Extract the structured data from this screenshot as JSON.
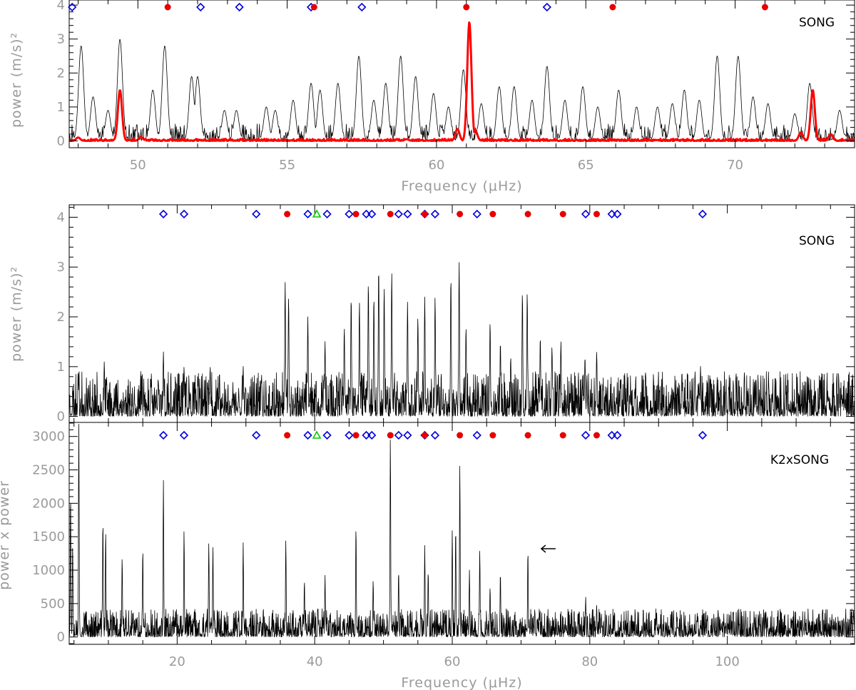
{
  "figure": {
    "colors": {
      "l0_marker": "#e60000",
      "l1_marker": "#0000dd",
      "l2_marker": "#00cc00",
      "raw_spectrum": "#000000",
      "smoothed_spectrum": "#ff0000"
    }
  },
  "chart_data": [
    {
      "type": "line",
      "panel_label": "SONG",
      "xlabel": "Frequency (μHz)",
      "ylabel": "power (m/s)²",
      "xlim": [
        47.7,
        74.0
      ],
      "ylim": [
        -0.2,
        4.15
      ],
      "xticks": [
        50,
        55,
        60,
        65,
        70
      ],
      "xtick_labels": [
        "50",
        "55",
        "60",
        "65",
        "70"
      ],
      "yticks": [
        0,
        1,
        2,
        3,
        4
      ],
      "ytick_labels": [
        "0",
        "1",
        "2",
        "3",
        "4"
      ],
      "grid": false,
      "series": [
        {
          "style": "thin black line",
          "peaks": [
            [
              48.1,
              2.8
            ],
            [
              48.5,
              1.3
            ],
            [
              49.0,
              0.9
            ],
            [
              49.4,
              3.0
            ],
            [
              50.5,
              1.5
            ],
            [
              50.9,
              2.8
            ],
            [
              51.8,
              1.9
            ],
            [
              52.0,
              1.9
            ],
            [
              52.9,
              0.9
            ],
            [
              53.3,
              0.9
            ],
            [
              54.3,
              1.0
            ],
            [
              54.6,
              0.9
            ],
            [
              55.2,
              1.2
            ],
            [
              55.8,
              1.7
            ],
            [
              56.1,
              1.5
            ],
            [
              56.7,
              1.7
            ],
            [
              57.4,
              2.5
            ],
            [
              57.9,
              1.2
            ],
            [
              58.3,
              1.7
            ],
            [
              58.8,
              2.5
            ],
            [
              59.3,
              1.9
            ],
            [
              59.9,
              1.4
            ],
            [
              60.4,
              1.0
            ],
            [
              60.9,
              2.1
            ],
            [
              61.5,
              1.1
            ],
            [
              62.1,
              1.6
            ],
            [
              62.6,
              1.6
            ],
            [
              63.2,
              1.2
            ],
            [
              63.7,
              2.2
            ],
            [
              64.3,
              1.2
            ],
            [
              64.9,
              1.6
            ],
            [
              65.4,
              1.0
            ],
            [
              66.1,
              1.5
            ],
            [
              66.7,
              1.0
            ],
            [
              67.4,
              1.0
            ],
            [
              67.9,
              1.1
            ],
            [
              68.3,
              1.5
            ],
            [
              68.8,
              1.2
            ],
            [
              69.4,
              2.5
            ],
            [
              70.1,
              2.5
            ],
            [
              70.6,
              1.3
            ],
            [
              71.1,
              1.1
            ],
            [
              72.0,
              0.8
            ],
            [
              72.5,
              1.7
            ],
            [
              73.5,
              0.9
            ]
          ]
        },
        {
          "style": "thick red line",
          "peaks": [
            [
              48.0,
              0.1
            ],
            [
              49.4,
              1.5
            ],
            [
              50.1,
              0.12
            ],
            [
              59.0,
              0.05
            ],
            [
              60.7,
              0.35
            ],
            [
              61.1,
              3.5
            ],
            [
              61.3,
              0.3
            ],
            [
              72.2,
              0.25
            ],
            [
              72.6,
              1.5
            ],
            [
              73.2,
              0.2
            ]
          ]
        }
      ],
      "markers": {
        "l0_filled_circles": [
          51.0,
          55.9,
          61.0,
          65.9,
          71.0
        ],
        "l1_open_diamonds": [
          47.8,
          52.1,
          53.4,
          55.8,
          57.5,
          63.7
        ],
        "l2_open_triangles": []
      }
    },
    {
      "type": "line",
      "panel_label": "SONG",
      "xlabel": "",
      "ylabel": "power (m/s)²",
      "xlim": [
        4.3,
        118.5
      ],
      "ylim": [
        -0.12,
        4.25
      ],
      "xticks": [
        20,
        40,
        60,
        80,
        100
      ],
      "xtick_labels": [],
      "yticks": [
        0,
        1,
        2,
        3,
        4
      ],
      "ytick_labels": [
        "0",
        "1",
        "2",
        "3",
        "4"
      ],
      "grid": false,
      "series": [
        {
          "style": "thin black line",
          "peaks": [
            [
              5.6,
              0.9
            ],
            [
              9.4,
              1.1
            ],
            [
              18.0,
              1.3
            ],
            [
              21.0,
              1.0
            ],
            [
              24.8,
              1.0
            ],
            [
              29.6,
              1.0
            ],
            [
              35.7,
              2.7
            ],
            [
              36.2,
              2.4
            ],
            [
              39.0,
              2.0
            ],
            [
              41.5,
              1.5
            ],
            [
              44.3,
              1.8
            ],
            [
              45.3,
              2.4
            ],
            [
              46.5,
              2.3
            ],
            [
              47.8,
              2.7
            ],
            [
              48.6,
              2.4
            ],
            [
              49.3,
              3.0
            ],
            [
              50.1,
              2.6
            ],
            [
              51.2,
              2.9
            ],
            [
              53.5,
              2.3
            ],
            [
              55.0,
              2.0
            ],
            [
              56.0,
              2.4
            ],
            [
              57.5,
              2.4
            ],
            [
              59.8,
              2.8
            ],
            [
              61.0,
              3.1
            ],
            [
              62.0,
              1.8
            ],
            [
              65.5,
              1.9
            ],
            [
              67.0,
              1.5
            ],
            [
              68.5,
              1.2
            ],
            [
              70.2,
              2.5
            ],
            [
              70.9,
              2.5
            ],
            [
              72.8,
              1.6
            ],
            [
              74.5,
              1.4
            ],
            [
              75.8,
              1.5
            ],
            [
              79.3,
              1.2
            ],
            [
              81.0,
              1.3
            ],
            [
              84.5,
              0.7
            ],
            [
              93.4,
              0.9
            ],
            [
              95.3,
              0.9
            ],
            [
              96.1,
              1.0
            ],
            [
              100.2,
              0.6
            ],
            [
              105.6,
              0.5
            ],
            [
              108.5,
              0.5
            ],
            [
              117.0,
              0.3
            ]
          ]
        }
      ],
      "markers": {
        "l0_filled_circles": [
          36.0,
          46.0,
          51.0,
          56.0,
          61.1,
          65.9,
          71.0,
          76.1,
          81.0
        ],
        "l1_open_diamonds": [
          18.0,
          21.0,
          31.5,
          39.0,
          41.8,
          45.0,
          47.5,
          48.3,
          52.2,
          53.5,
          56.0,
          57.5,
          63.6,
          79.4,
          83.2,
          84.0,
          96.4
        ],
        "l2_open_triangles": [
          40.3
        ]
      }
    },
    {
      "type": "line",
      "panel_label": "K2xSONG",
      "xlabel": "Frequency (μHz)",
      "ylabel": "power x power",
      "xlim": [
        4.3,
        118.5
      ],
      "ylim": [
        -110,
        3210
      ],
      "xticks": [
        20,
        40,
        60,
        80,
        100
      ],
      "xtick_labels": [
        "20",
        "40",
        "60",
        "80",
        "100"
      ],
      "yticks": [
        0,
        500,
        1000,
        1500,
        2000,
        2500,
        3000
      ],
      "ytick_labels": [
        "0",
        "500",
        "1000",
        "1500",
        "2000",
        "2500",
        "3000"
      ],
      "grid": false,
      "series": [
        {
          "style": "thin black line",
          "peaks": [
            [
              4.5,
              2150
            ],
            [
              4.8,
              1400
            ],
            [
              5.7,
              3200
            ],
            [
              9.2,
              1750
            ],
            [
              9.6,
              1600
            ],
            [
              12.0,
              1200
            ],
            [
              15.0,
              1320
            ],
            [
              18.0,
              2350
            ],
            [
              21.0,
              1600
            ],
            [
              24.6,
              1410
            ],
            [
              25.2,
              1350
            ],
            [
              29.6,
              1410
            ],
            [
              35.8,
              1450
            ],
            [
              38.5,
              850
            ],
            [
              41.5,
              920
            ],
            [
              46.0,
              1670
            ],
            [
              48.5,
              860
            ],
            [
              51.0,
              3000
            ],
            [
              52.2,
              1000
            ],
            [
              56.0,
              1370
            ],
            [
              56.5,
              1000
            ],
            [
              60.0,
              1600
            ],
            [
              60.5,
              1650
            ],
            [
              61.1,
              2580
            ],
            [
              62.5,
              1000
            ],
            [
              64.0,
              1300
            ],
            [
              65.5,
              750
            ],
            [
              67.0,
              980
            ],
            [
              71.0,
              1300
            ],
            [
              72.0,
              420
            ],
            [
              79.4,
              600
            ],
            [
              81.0,
              480
            ],
            [
              92.0,
              140
            ],
            [
              98.0,
              160
            ],
            [
              108.5,
              180
            ]
          ]
        }
      ],
      "markers": {
        "l0_filled_circles": [
          36.0,
          46.0,
          51.0,
          56.0,
          61.1,
          65.9,
          71.0,
          76.1,
          81.0
        ],
        "l1_open_diamonds": [
          18.0,
          21.0,
          31.5,
          39.0,
          41.8,
          45.0,
          47.5,
          48.3,
          52.2,
          53.5,
          56.0,
          57.5,
          63.6,
          79.4,
          83.2,
          84.0,
          96.4
        ],
        "l2_open_triangles": [
          40.3
        ]
      },
      "annotations": [
        {
          "type": "arrow",
          "direction": "left",
          "points_to": [
            71.5,
            1320
          ]
        }
      ]
    }
  ]
}
